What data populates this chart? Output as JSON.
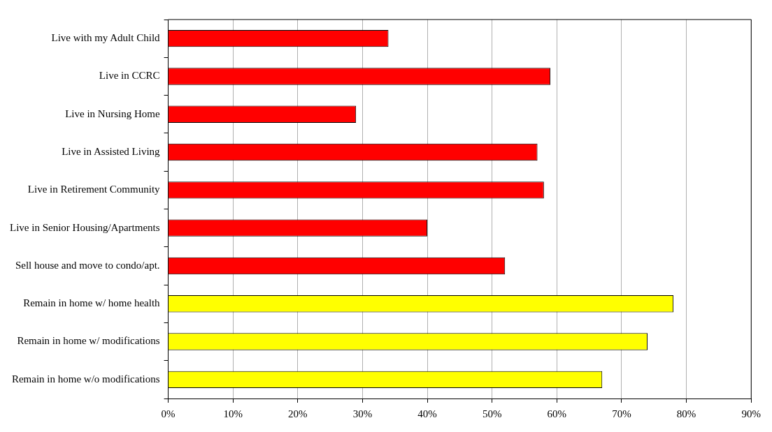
{
  "chart_data": {
    "type": "bar",
    "orientation": "horizontal",
    "categories": [
      "Live with my Adult Child",
      "Live in CCRC",
      "Live in Nursing Home",
      "Live in Assisted Living",
      "Live in Retirement Community",
      "Live in Senior Housing/Apartments",
      "Sell house and move to condo/apt.",
      "Remain in home w/ home health",
      "Remain in home w/ modifications",
      "Remain in home w/o modifications"
    ],
    "values": [
      34,
      59,
      29,
      57,
      58,
      40,
      52,
      78,
      74,
      67
    ],
    "colors": [
      "#ff0000",
      "#ff0000",
      "#ff0000",
      "#ff0000",
      "#ff0000",
      "#ff0000",
      "#ff0000",
      "#ffff00",
      "#ffff00",
      "#ffff00"
    ],
    "xlim": [
      0,
      90
    ],
    "xticks": [
      {
        "value": 0,
        "label": "0%"
      },
      {
        "value": 10,
        "label": "10%"
      },
      {
        "value": 20,
        "label": "20%"
      },
      {
        "value": 30,
        "label": "30%"
      },
      {
        "value": 40,
        "label": "40%"
      },
      {
        "value": 50,
        "label": "50%"
      },
      {
        "value": 60,
        "label": "60%"
      },
      {
        "value": 70,
        "label": "70%"
      },
      {
        "value": 80,
        "label": "80%"
      },
      {
        "value": 90,
        "label": "90%"
      }
    ],
    "grid": "x",
    "legend": false
  }
}
